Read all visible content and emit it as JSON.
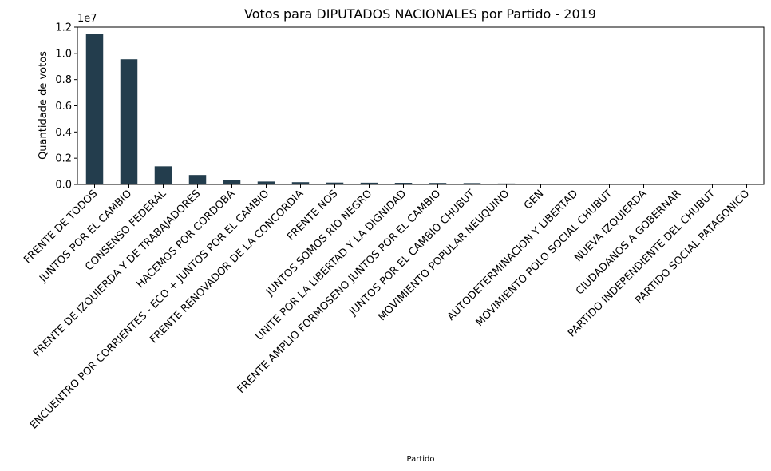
{
  "chart_data": {
    "type": "bar",
    "title": "Votos para DIPUTADOS NACIONALES por Partido - 2019",
    "xlabel": "Partido",
    "ylabel": "Quantidade de votos",
    "offset_label": "1e7",
    "ylim": [
      0,
      1.2
    ],
    "yticks": [
      "0.0",
      "0.2",
      "0.4",
      "0.6",
      "0.8",
      "1.0",
      "1.2"
    ],
    "grid": false,
    "bar_color": "#233d4d",
    "categories": [
      "FRENTE DE TODOS",
      "JUNTOS POR EL CAMBIO",
      "CONSENSO FEDERAL",
      "FRENTE DE IZQUIERDA Y DE TRABAJADORES",
      "HACEMOS POR CORDOBA",
      "ENCUENTRO POR CORRIENTES - ECO + JUNTOS POR EL CAMBIO",
      "FRENTE RENOVADOR DE LA CONCORDIA",
      "FRENTE NOS",
      "JUNTOS SOMOS RIO NEGRO",
      "UNITE POR LA LIBERTAD Y LA DIGNIDAD",
      "FRENTE AMPLIO FORMOSENO JUNTOS POR EL CAMBIO",
      "JUNTOS POR EL CAMBIO CHUBUT",
      "MOVIMIENTO POPULAR NEUQUINO",
      "GEN",
      "AUTODETERMINACION Y LIBERTAD",
      "MOVIMIENTO POLO SOCIAL CHUBUT",
      "NUEVA IZQUIERDA",
      "CIUDADANOS A GOBERNAR",
      "PARTIDO INDEPENDIENTE DEL CHUBUT",
      "PARTIDO SOCIAL PATAGONICO"
    ],
    "values": [
      1.15,
      0.955,
      0.138,
      0.072,
      0.034,
      0.022,
      0.017,
      0.014,
      0.013,
      0.012,
      0.011,
      0.01,
      0.007,
      0.005,
      0.005,
      0.002,
      0.001,
      0.001,
      0.0007,
      0.0005
    ]
  }
}
